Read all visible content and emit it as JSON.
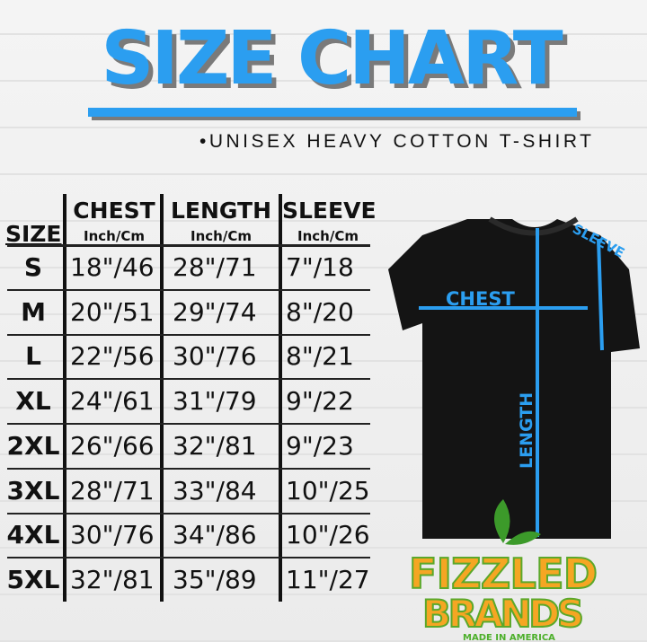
{
  "title": "SIZE CHART",
  "subtitle": "•UNISEX HEAVY COTTON T-SHIRT",
  "table": {
    "size_header": "SIZE",
    "columns": [
      {
        "label": "CHEST",
        "unit": "Inch/Cm"
      },
      {
        "label": "LENGTH",
        "unit": "Inch/Cm"
      },
      {
        "label": "SLEEVE",
        "unit": "Inch/Cm"
      }
    ],
    "rows": [
      {
        "size": "S",
        "chest": "18\"/46",
        "length": "28\"/71",
        "sleeve": "7\"/18"
      },
      {
        "size": "M",
        "chest": "20\"/51",
        "length": "29\"/74",
        "sleeve": "8\"/20"
      },
      {
        "size": "L",
        "chest": "22\"/56",
        "length": "30\"/76",
        "sleeve": "8\"/21"
      },
      {
        "size": "XL",
        "chest": "24\"/61",
        "length": "31\"/79",
        "sleeve": "9\"/22"
      },
      {
        "size": "2XL",
        "chest": "26\"/66",
        "length": "32\"/81",
        "sleeve": "9\"/23"
      },
      {
        "size": "3XL",
        "chest": "28\"/71",
        "length": "33\"/84",
        "sleeve": "10\"/25"
      },
      {
        "size": "4XL",
        "chest": "30\"/76",
        "length": "34\"/86",
        "sleeve": "10\"/26"
      },
      {
        "size": "5XL",
        "chest": "32\"/81",
        "length": "35\"/89",
        "sleeve": "11\"/27"
      }
    ]
  },
  "diagram": {
    "chest": "CHEST",
    "length": "LENGTH",
    "sleeve": "SLEEVE",
    "accent": "#2b9ef0"
  },
  "logo": {
    "line1": "FIZZLED",
    "line2": "BRANDS",
    "tagline": "MADE IN AMERICA"
  }
}
